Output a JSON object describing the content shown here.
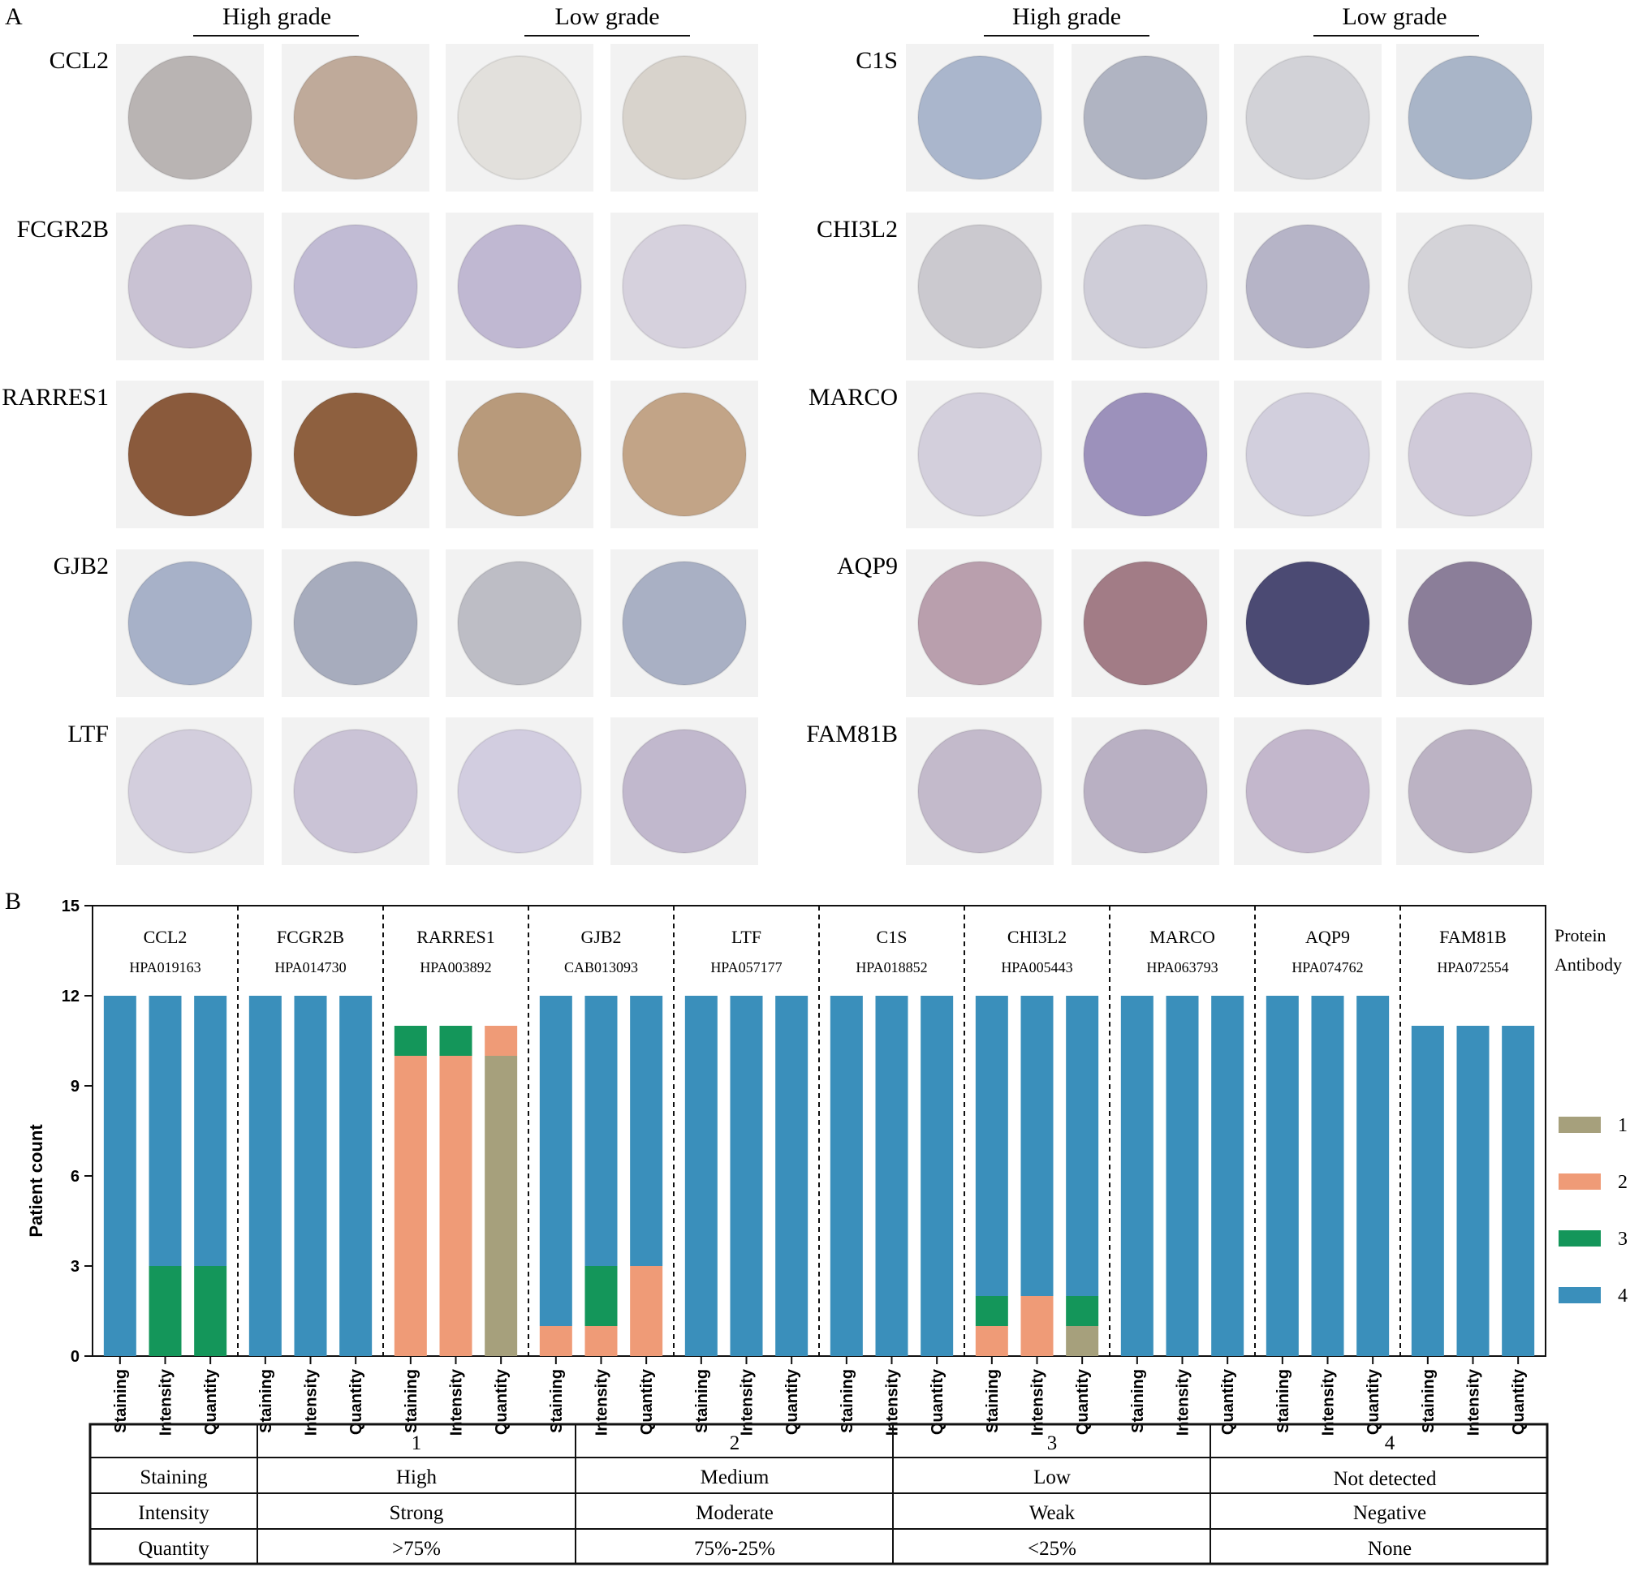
{
  "panel_a": {
    "label": "A",
    "header_high": "High grade",
    "header_low": "Low grade",
    "genes_left": [
      "CCL2",
      "FCGR2B",
      "RARRES1",
      "GJB2",
      "LTF"
    ],
    "genes_right": [
      "C1S",
      "CHI3L2",
      "MARCO",
      "AQP9",
      "FAM81B"
    ],
    "tile_colors_left": [
      [
        "#b9b4b3",
        "#bfaa9a",
        "#e2e0dc",
        "#d8d3cc"
      ],
      [
        "#c9c2d3",
        "#c1bbd4",
        "#c0b8d2",
        "#d6d1dd"
      ],
      [
        "#8a5a3c",
        "#8e603f",
        "#b89a7b",
        "#c2a487"
      ],
      [
        "#a7b1c8",
        "#a7acbd",
        "#bdbdc5",
        "#a9b0c4"
      ],
      [
        "#d3cedd",
        "#cac3d6",
        "#d2cde0",
        "#c1b8cd"
      ]
    ],
    "tile_colors_right": [
      [
        "#aab6cc",
        "#b0b4c2",
        "#d2d2d7",
        "#a9b5c8"
      ],
      [
        "#cbc9cf",
        "#cfcdd8",
        "#b6b4c7",
        "#d4d3d8"
      ],
      [
        "#d3cfdc",
        "#9c91bb",
        "#d2cfdd",
        "#d0cad9"
      ],
      [
        "#b99fad",
        "#a27c86",
        "#4b4a73",
        "#8b7e99"
      ],
      [
        "#c3bacb",
        "#b9b0c3",
        "#c3b7cc",
        "#bcb3c4"
      ]
    ]
  },
  "chart_data": {
    "type": "bar",
    "stacked": true,
    "panel_label": "B",
    "ylabel": "Patient count",
    "ylim": [
      0,
      15
    ],
    "yticks": [
      "0",
      "3",
      "6",
      "9",
      "12",
      "15"
    ],
    "side_labels": [
      "Protein",
      "Antibody"
    ],
    "colors": {
      "1": "#a6a07c",
      "2": "#ef9b77",
      "3": "#14965a",
      "4": "#3a8fbb"
    },
    "legend": [
      "1",
      "2",
      "3",
      "4"
    ],
    "groups": [
      {
        "protein": "CCL2",
        "antibody": "HPA019163",
        "bars": [
          {
            "label": "Staining",
            "counts": [
              0,
              0,
              0,
              12
            ]
          },
          {
            "label": "Intensity",
            "counts": [
              0,
              0,
              3,
              9
            ]
          },
          {
            "label": "Quantity",
            "counts": [
              0,
              0,
              3,
              9
            ]
          }
        ]
      },
      {
        "protein": "FCGR2B",
        "antibody": "HPA014730",
        "bars": [
          {
            "label": "Staining",
            "counts": [
              0,
              0,
              0,
              12
            ]
          },
          {
            "label": "Intensity",
            "counts": [
              0,
              0,
              0,
              12
            ]
          },
          {
            "label": "Quantity",
            "counts": [
              0,
              0,
              0,
              12
            ]
          }
        ]
      },
      {
        "protein": "RARRES1",
        "antibody": "HPA003892",
        "bars": [
          {
            "label": "Staining",
            "counts": [
              0,
              10,
              1,
              0
            ]
          },
          {
            "label": "Intensity",
            "counts": [
              0,
              10,
              1,
              0
            ]
          },
          {
            "label": "Quantity",
            "counts": [
              10,
              1,
              0,
              0
            ]
          }
        ]
      },
      {
        "protein": "GJB2",
        "antibody": "CAB013093",
        "bars": [
          {
            "label": "Staining",
            "counts": [
              0,
              1,
              0,
              11
            ]
          },
          {
            "label": "Intensity",
            "counts": [
              0,
              1,
              2,
              9
            ]
          },
          {
            "label": "Quantity",
            "counts": [
              0,
              3,
              0,
              9
            ]
          }
        ]
      },
      {
        "protein": "LTF",
        "antibody": "HPA057177",
        "bars": [
          {
            "label": "Staining",
            "counts": [
              0,
              0,
              0,
              12
            ]
          },
          {
            "label": "Intensity",
            "counts": [
              0,
              0,
              0,
              12
            ]
          },
          {
            "label": "Quantity",
            "counts": [
              0,
              0,
              0,
              12
            ]
          }
        ]
      },
      {
        "protein": "C1S",
        "antibody": "HPA018852",
        "bars": [
          {
            "label": "Staining",
            "counts": [
              0,
              0,
              0,
              12
            ]
          },
          {
            "label": "Intensity",
            "counts": [
              0,
              0,
              0,
              12
            ]
          },
          {
            "label": "Quantity",
            "counts": [
              0,
              0,
              0,
              12
            ]
          }
        ]
      },
      {
        "protein": "CHI3L2",
        "antibody": "HPA005443",
        "bars": [
          {
            "label": "Staining",
            "counts": [
              0,
              1,
              1,
              10
            ]
          },
          {
            "label": "Intensity",
            "counts": [
              0,
              2,
              0,
              10
            ]
          },
          {
            "label": "Quantity",
            "counts": [
              1,
              0,
              1,
              10
            ]
          }
        ]
      },
      {
        "protein": "MARCO",
        "antibody": "HPA063793",
        "bars": [
          {
            "label": "Staining",
            "counts": [
              0,
              0,
              0,
              12
            ]
          },
          {
            "label": "Intensity",
            "counts": [
              0,
              0,
              0,
              12
            ]
          },
          {
            "label": "Quantity",
            "counts": [
              0,
              0,
              0,
              12
            ]
          }
        ]
      },
      {
        "protein": "AQP9",
        "antibody": "HPA074762",
        "bars": [
          {
            "label": "Staining",
            "counts": [
              0,
              0,
              0,
              12
            ]
          },
          {
            "label": "Intensity",
            "counts": [
              0,
              0,
              0,
              12
            ]
          },
          {
            "label": "Quantity",
            "counts": [
              0,
              0,
              0,
              12
            ]
          }
        ]
      },
      {
        "protein": "FAM81B",
        "antibody": "HPA072554",
        "bars": [
          {
            "label": "Staining",
            "counts": [
              0,
              0,
              0,
              11
            ]
          },
          {
            "label": "Intensity",
            "counts": [
              0,
              0,
              0,
              11
            ]
          },
          {
            "label": "Quantity",
            "counts": [
              0,
              0,
              0,
              11
            ]
          }
        ]
      }
    ]
  },
  "score_table": {
    "header": [
      "",
      "1",
      "2",
      "3",
      "4"
    ],
    "rows": [
      [
        "Staining",
        "High",
        "Medium",
        "Low",
        "Not detected"
      ],
      [
        "Intensity",
        "Strong",
        "Moderate",
        "Weak",
        "Negative"
      ],
      [
        "Quantity",
        ">75%",
        "75%-25%",
        "<25%",
        "None"
      ]
    ]
  }
}
